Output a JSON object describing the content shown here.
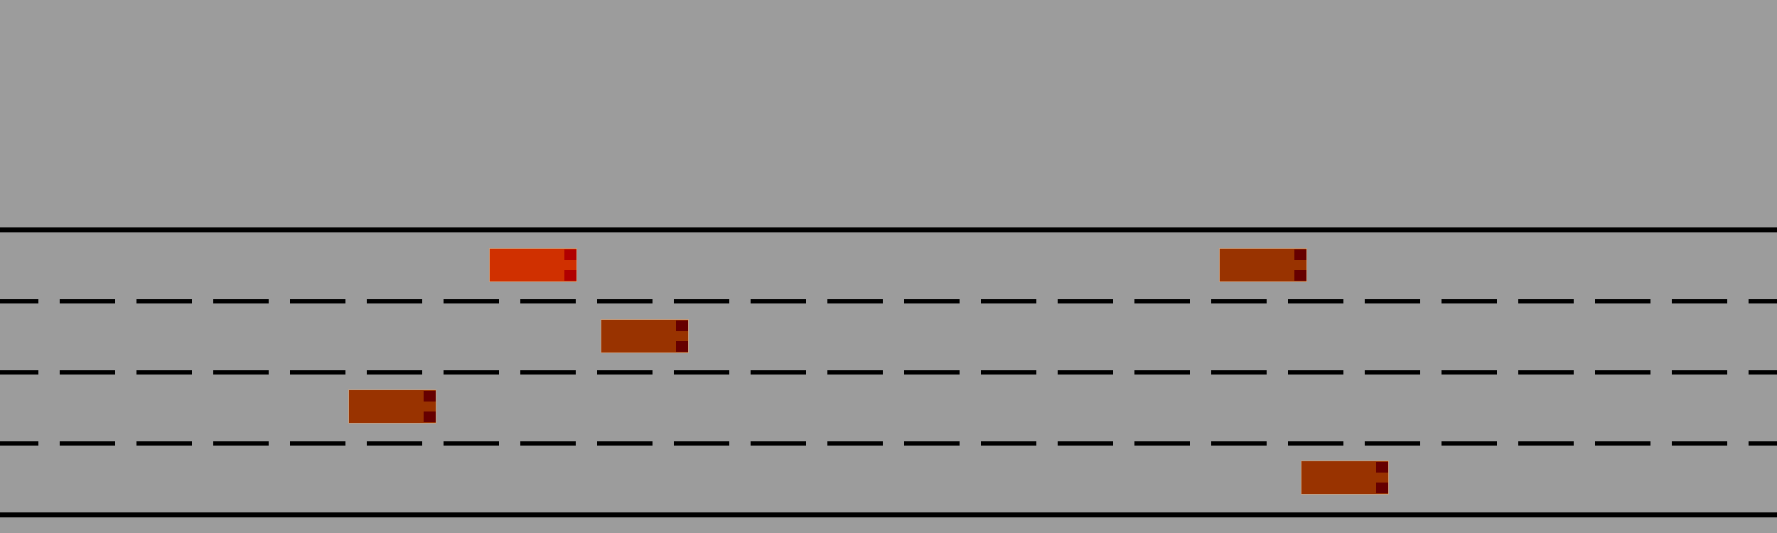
{
  "scene": {
    "road_color": "#9c9c9c",
    "line_color": "#000000",
    "lane_count": 4
  },
  "vehicles": [
    {
      "role": "ego",
      "lane": 1,
      "body_color": "#d03000",
      "light_color": "#b00000"
    },
    {
      "role": "other",
      "lane": 1,
      "body_color": "#993300",
      "light_color": "#660000"
    },
    {
      "role": "other",
      "lane": 2,
      "body_color": "#993300",
      "light_color": "#660000"
    },
    {
      "role": "other",
      "lane": 3,
      "body_color": "#993300",
      "light_color": "#660000"
    },
    {
      "role": "other",
      "lane": 4,
      "body_color": "#993300",
      "light_color": "#660000"
    }
  ]
}
